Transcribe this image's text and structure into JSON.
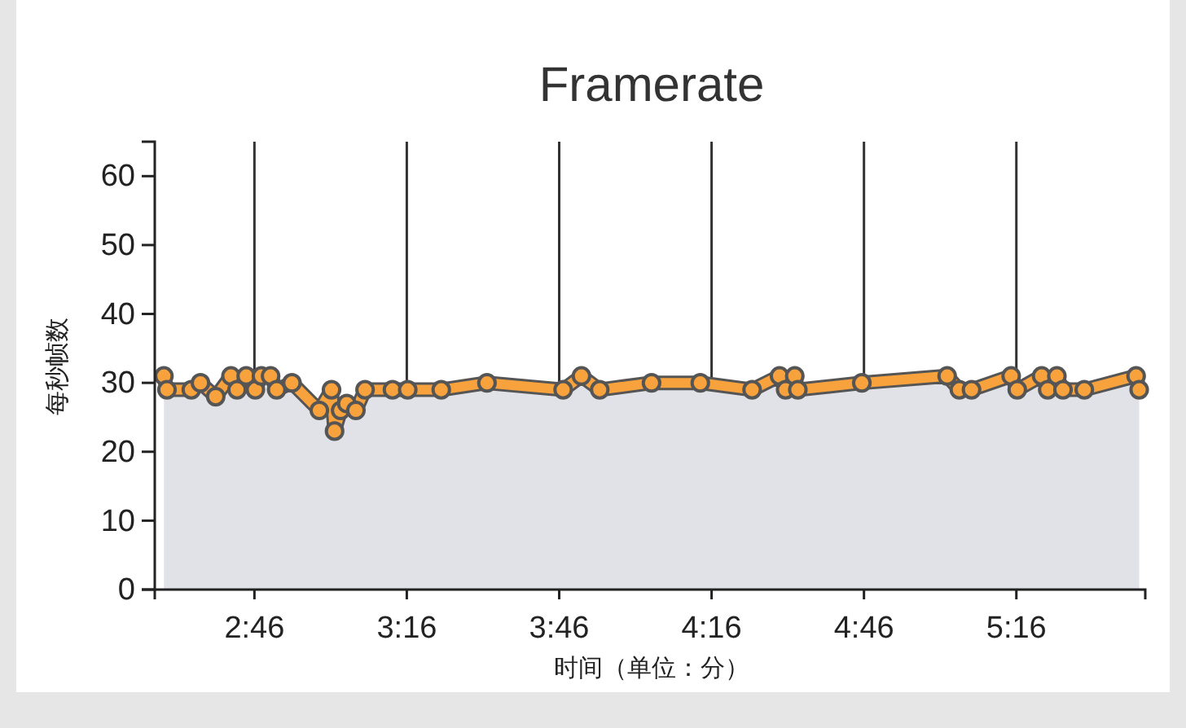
{
  "chart_data": {
    "type": "area",
    "title": "Framerate",
    "xlabel": "时间（单位：分）",
    "ylabel": "每秒帧数",
    "xlim": [
      2.44,
      5.69
    ],
    "xticks": [
      {
        "value": 2.767,
        "label": "2:46"
      },
      {
        "value": 3.267,
        "label": "3:16"
      },
      {
        "value": 3.767,
        "label": "3:46"
      },
      {
        "value": 4.267,
        "label": "4:16"
      },
      {
        "value": 4.767,
        "label": "4:46"
      },
      {
        "value": 5.267,
        "label": "5:16"
      }
    ],
    "ylim": [
      0,
      65
    ],
    "yticks": [
      0,
      10,
      20,
      30,
      40,
      50,
      60
    ],
    "grid": "x",
    "marker": "circle",
    "line_style": "solid",
    "x": [
      2.47,
      2.48,
      2.56,
      2.59,
      2.64,
      2.69,
      2.71,
      2.74,
      2.77,
      2.79,
      2.82,
      2.84,
      2.89,
      2.98,
      3.02,
      3.03,
      3.05,
      3.07,
      3.1,
      3.13,
      3.22,
      3.27,
      3.38,
      3.53,
      3.78,
      3.84,
      3.9,
      4.07,
      4.23,
      4.4,
      4.49,
      4.51,
      4.54,
      4.55,
      4.76,
      5.04,
      5.08,
      5.12,
      5.25,
      5.27,
      5.35,
      5.37,
      5.4,
      5.42,
      5.49,
      5.66,
      5.67
    ],
    "series": [
      {
        "color": "#f7a23c",
        "values": [
          31,
          29,
          29,
          30,
          28,
          31,
          29,
          31,
          29,
          31,
          31,
          29,
          30,
          26,
          29,
          23,
          26,
          27,
          26,
          29,
          29,
          29,
          29,
          30,
          29,
          31,
          29,
          30,
          30,
          29,
          31,
          29,
          31,
          29,
          30,
          31,
          29,
          29,
          31,
          29,
          31,
          29,
          31,
          29,
          29,
          31,
          29
        ]
      }
    ]
  }
}
